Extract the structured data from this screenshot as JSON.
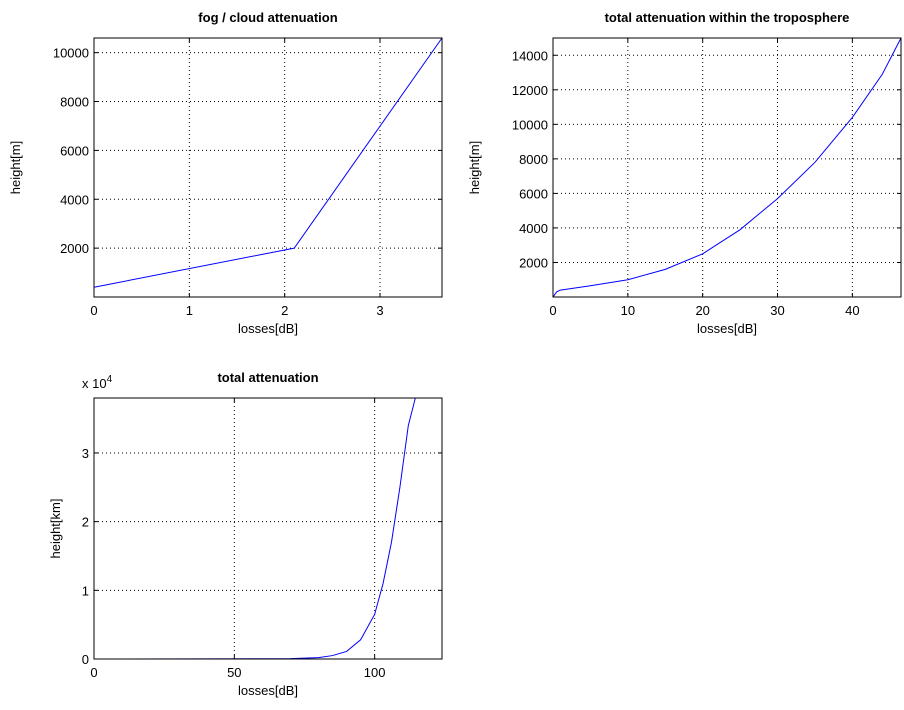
{
  "chart_data": [
    {
      "type": "line",
      "title": "fog / cloud attenuation",
      "xlabel": "losses[dB]",
      "ylabel": "height[m]",
      "xlim": [
        0,
        3.65
      ],
      "ylim": [
        0,
        10600
      ],
      "xticks": [
        0,
        1,
        2,
        3
      ],
      "yticks": [
        2000,
        4000,
        6000,
        8000,
        10000
      ],
      "xticklabels": [
        "0",
        "1",
        "2",
        "3"
      ],
      "yticklabels": [
        "2000",
        "4000",
        "6000",
        "8000",
        "10000"
      ],
      "grid": true,
      "series": [
        {
          "color": "#0000ff",
          "x": [
            0,
            2.1,
            3.65
          ],
          "y": [
            400,
            2000,
            10600
          ]
        }
      ]
    },
    {
      "type": "line",
      "title": "total attenuation within the troposphere",
      "xlabel": "losses[dB]",
      "ylabel": "height[m]",
      "xlim": [
        0,
        46.5
      ],
      "ylim": [
        0,
        15000
      ],
      "xticks": [
        0,
        10,
        20,
        30,
        40
      ],
      "yticks": [
        2000,
        4000,
        6000,
        8000,
        10000,
        12000,
        14000
      ],
      "xticklabels": [
        "0",
        "10",
        "20",
        "30",
        "40"
      ],
      "yticklabels": [
        "2000",
        "4000",
        "6000",
        "8000",
        "10000",
        "12000",
        "14000"
      ],
      "grid": true,
      "series": [
        {
          "color": "#0000ff",
          "x": [
            0,
            0.5,
            1,
            5,
            10,
            15,
            20,
            25,
            30,
            35,
            40,
            44,
            46.5
          ],
          "y": [
            0,
            300,
            400,
            650,
            1000,
            1600,
            2500,
            3900,
            5700,
            7800,
            10400,
            12900,
            15000
          ]
        }
      ]
    },
    {
      "type": "line",
      "title": "total attenuation",
      "xlabel": "losses[dB]",
      "ylabel": "height[km]",
      "xlim": [
        0,
        124
      ],
      "ylim": [
        0,
        38000
      ],
      "xticks": [
        0,
        50,
        100
      ],
      "yticks": [
        0,
        10000,
        20000,
        30000
      ],
      "xticklabels": [
        "0",
        "50",
        "100"
      ],
      "yticklabels": [
        "0",
        "1",
        "2",
        "3"
      ],
      "y_multiplier": {
        "base": "x 10",
        "exponent": "4"
      },
      "grid": true,
      "series": [
        {
          "color": "#0000ff",
          "x": [
            0,
            70,
            80,
            85,
            90,
            95,
            100,
            103,
            106,
            109,
            112,
            114.5
          ],
          "y": [
            0,
            50,
            200,
            500,
            1100,
            2800,
            6500,
            11000,
            17000,
            25000,
            34000,
            38000
          ]
        }
      ]
    }
  ]
}
